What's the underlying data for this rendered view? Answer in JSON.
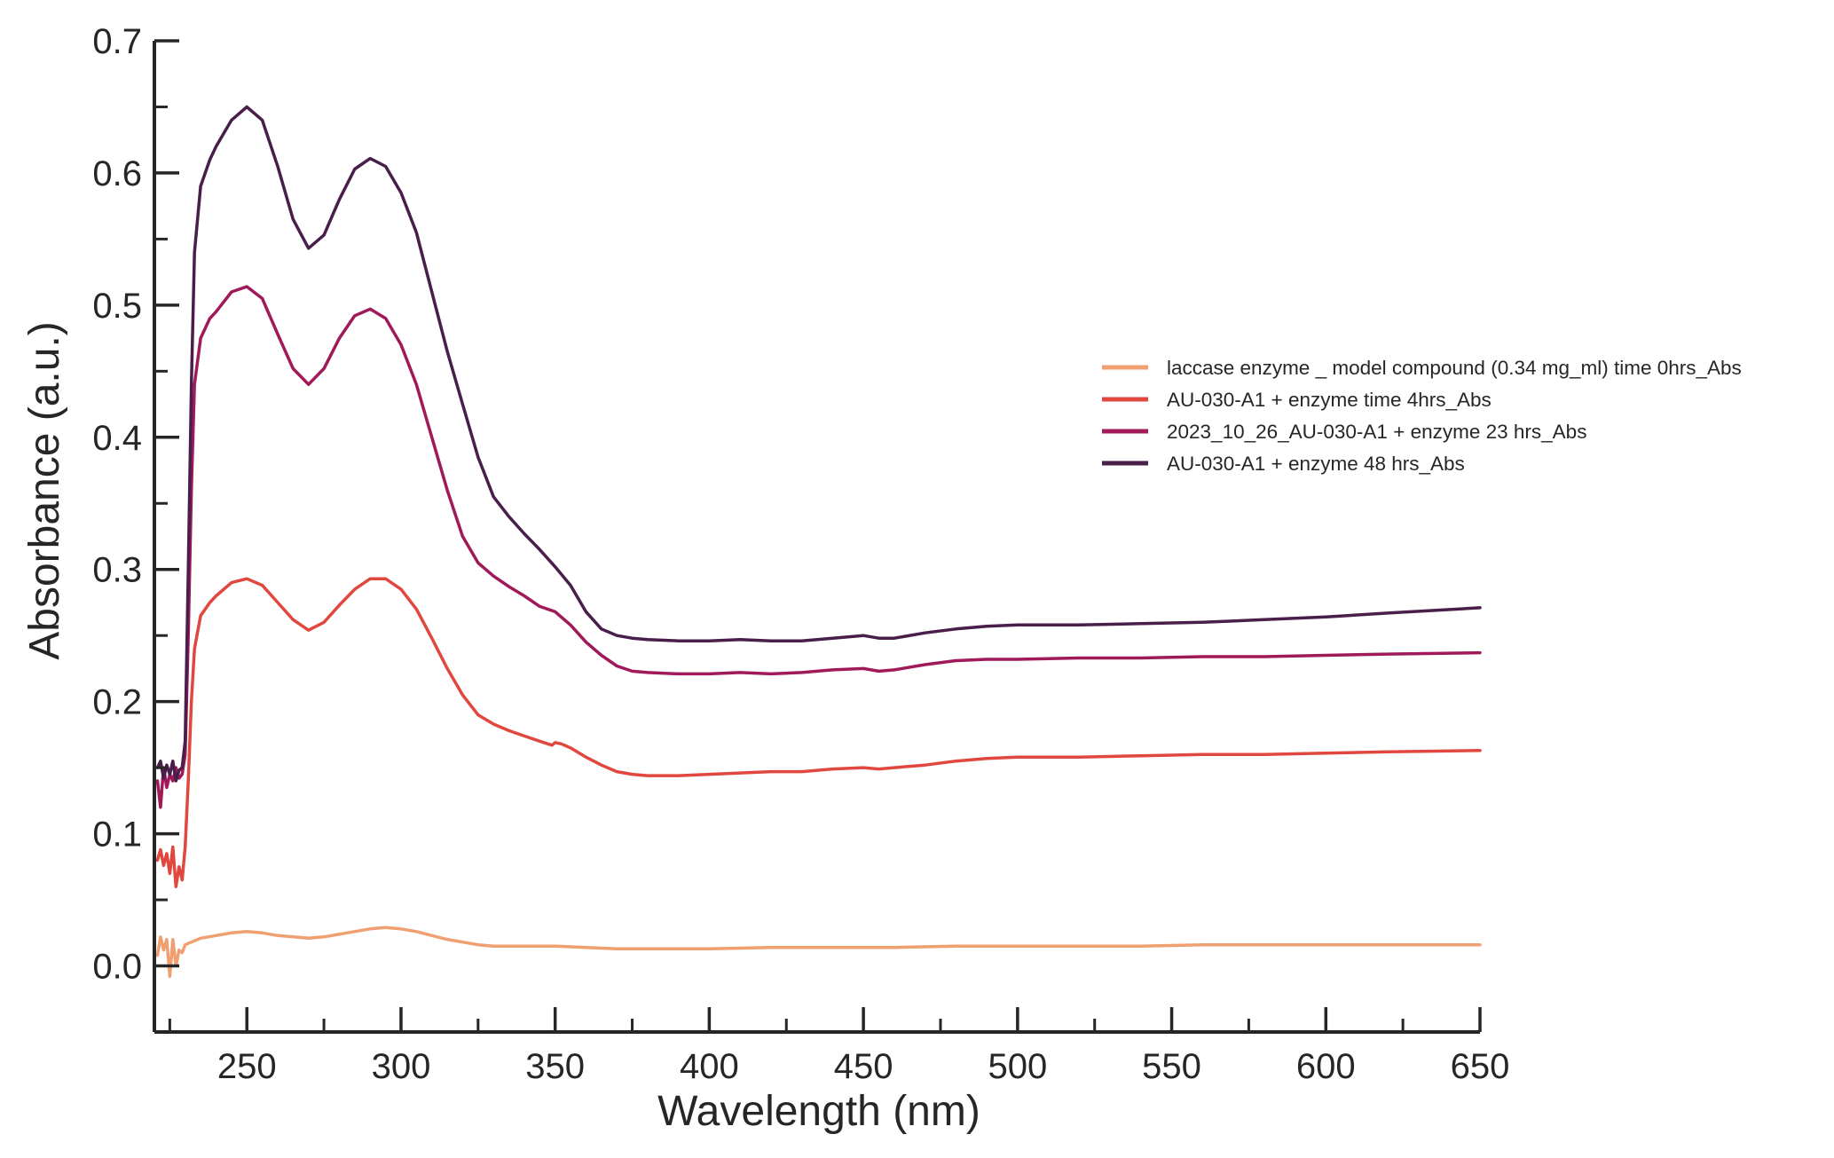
{
  "chart_data": {
    "type": "line",
    "title": "",
    "xlabel": "Wavelength (nm)",
    "ylabel": "Absorbance (a.u.)",
    "xlim": [
      220,
      650
    ],
    "ylim": [
      -0.05,
      0.7
    ],
    "xticks": [
      250,
      300,
      350,
      400,
      450,
      500,
      550,
      600,
      650
    ],
    "xtick_labels": [
      "250",
      "300",
      "350",
      "400",
      "450",
      "500",
      "550",
      "600",
      "650"
    ],
    "yticks": [
      0.0,
      0.1,
      0.2,
      0.3,
      0.4,
      0.5,
      0.6,
      0.7
    ],
    "ytick_labels": [
      "0.0",
      "0.1",
      "0.2",
      "0.3",
      "0.4",
      "0.5",
      "0.6",
      "0.7"
    ],
    "grid": false,
    "legend_position": "right",
    "series": [
      {
        "name": "laccase enzyme _ model compound (0.34 mg_ml) time 0hrs_Abs",
        "color": "#f0a070",
        "points": [
          [
            221,
            0.008
          ],
          [
            222,
            0.022
          ],
          [
            223,
            0.012
          ],
          [
            224,
            0.02
          ],
          [
            225,
            -0.008
          ],
          [
            226,
            0.02
          ],
          [
            227,
            0.0
          ],
          [
            228,
            0.012
          ],
          [
            229,
            0.01
          ],
          [
            230,
            0.016
          ],
          [
            232,
            0.018
          ],
          [
            235,
            0.021
          ],
          [
            240,
            0.023
          ],
          [
            245,
            0.025
          ],
          [
            250,
            0.026
          ],
          [
            255,
            0.025
          ],
          [
            260,
            0.023
          ],
          [
            265,
            0.022
          ],
          [
            270,
            0.021
          ],
          [
            275,
            0.022
          ],
          [
            280,
            0.024
          ],
          [
            285,
            0.026
          ],
          [
            290,
            0.028
          ],
          [
            295,
            0.029
          ],
          [
            300,
            0.028
          ],
          [
            305,
            0.026
          ],
          [
            310,
            0.023
          ],
          [
            315,
            0.02
          ],
          [
            320,
            0.018
          ],
          [
            325,
            0.016
          ],
          [
            330,
            0.015
          ],
          [
            340,
            0.015
          ],
          [
            350,
            0.015
          ],
          [
            360,
            0.014
          ],
          [
            370,
            0.013
          ],
          [
            380,
            0.013
          ],
          [
            390,
            0.013
          ],
          [
            400,
            0.013
          ],
          [
            420,
            0.014
          ],
          [
            440,
            0.014
          ],
          [
            460,
            0.014
          ],
          [
            480,
            0.015
          ],
          [
            500,
            0.015
          ],
          [
            520,
            0.015
          ],
          [
            540,
            0.015
          ],
          [
            560,
            0.016
          ],
          [
            580,
            0.016
          ],
          [
            600,
            0.016
          ],
          [
            620,
            0.016
          ],
          [
            650,
            0.016
          ]
        ]
      },
      {
        "name": "AU-030-A1 + enzyme time 4hrs_Abs",
        "color": "#e0483f",
        "points": [
          [
            221,
            0.08
          ],
          [
            222,
            0.088
          ],
          [
            223,
            0.076
          ],
          [
            224,
            0.085
          ],
          [
            225,
            0.07
          ],
          [
            226,
            0.09
          ],
          [
            227,
            0.06
          ],
          [
            228,
            0.075
          ],
          [
            229,
            0.065
          ],
          [
            230,
            0.09
          ],
          [
            231,
            0.14
          ],
          [
            232,
            0.2
          ],
          [
            233,
            0.24
          ],
          [
            235,
            0.265
          ],
          [
            238,
            0.275
          ],
          [
            240,
            0.28
          ],
          [
            245,
            0.29
          ],
          [
            250,
            0.293
          ],
          [
            255,
            0.288
          ],
          [
            260,
            0.275
          ],
          [
            265,
            0.262
          ],
          [
            270,
            0.254
          ],
          [
            275,
            0.26
          ],
          [
            280,
            0.273
          ],
          [
            285,
            0.285
          ],
          [
            290,
            0.293
          ],
          [
            295,
            0.293
          ],
          [
            300,
            0.285
          ],
          [
            305,
            0.27
          ],
          [
            310,
            0.248
          ],
          [
            315,
            0.225
          ],
          [
            320,
            0.205
          ],
          [
            325,
            0.19
          ],
          [
            330,
            0.183
          ],
          [
            335,
            0.178
          ],
          [
            340,
            0.174
          ],
          [
            345,
            0.17
          ],
          [
            349,
            0.167
          ],
          [
            350,
            0.169
          ],
          [
            352,
            0.168
          ],
          [
            355,
            0.165
          ],
          [
            360,
            0.158
          ],
          [
            365,
            0.152
          ],
          [
            370,
            0.147
          ],
          [
            375,
            0.145
          ],
          [
            380,
            0.144
          ],
          [
            390,
            0.144
          ],
          [
            400,
            0.145
          ],
          [
            410,
            0.146
          ],
          [
            420,
            0.147
          ],
          [
            430,
            0.147
          ],
          [
            440,
            0.149
          ],
          [
            450,
            0.15
          ],
          [
            455,
            0.149
          ],
          [
            460,
            0.15
          ],
          [
            470,
            0.152
          ],
          [
            480,
            0.155
          ],
          [
            490,
            0.157
          ],
          [
            500,
            0.158
          ],
          [
            520,
            0.158
          ],
          [
            540,
            0.159
          ],
          [
            560,
            0.16
          ],
          [
            580,
            0.16
          ],
          [
            600,
            0.161
          ],
          [
            620,
            0.162
          ],
          [
            650,
            0.163
          ]
        ]
      },
      {
        "name": "2023_10_26_AU-030-A1 + enzyme 23 hrs_Abs",
        "color": "#a01a5a",
        "points": [
          [
            221,
            0.14
          ],
          [
            222,
            0.12
          ],
          [
            223,
            0.15
          ],
          [
            224,
            0.135
          ],
          [
            225,
            0.145
          ],
          [
            226,
            0.14
          ],
          [
            227,
            0.15
          ],
          [
            228,
            0.142
          ],
          [
            229,
            0.145
          ],
          [
            230,
            0.16
          ],
          [
            231,
            0.25
          ],
          [
            232,
            0.36
          ],
          [
            233,
            0.44
          ],
          [
            235,
            0.475
          ],
          [
            238,
            0.49
          ],
          [
            240,
            0.495
          ],
          [
            245,
            0.51
          ],
          [
            250,
            0.514
          ],
          [
            255,
            0.505
          ],
          [
            260,
            0.478
          ],
          [
            265,
            0.452
          ],
          [
            270,
            0.44
          ],
          [
            275,
            0.452
          ],
          [
            280,
            0.475
          ],
          [
            285,
            0.492
          ],
          [
            290,
            0.497
          ],
          [
            295,
            0.49
          ],
          [
            300,
            0.47
          ],
          [
            305,
            0.44
          ],
          [
            310,
            0.4
          ],
          [
            315,
            0.36
          ],
          [
            320,
            0.325
          ],
          [
            325,
            0.305
          ],
          [
            330,
            0.295
          ],
          [
            335,
            0.287
          ],
          [
            340,
            0.28
          ],
          [
            345,
            0.272
          ],
          [
            350,
            0.268
          ],
          [
            355,
            0.258
          ],
          [
            360,
            0.245
          ],
          [
            365,
            0.235
          ],
          [
            370,
            0.227
          ],
          [
            375,
            0.223
          ],
          [
            380,
            0.222
          ],
          [
            390,
            0.221
          ],
          [
            400,
            0.221
          ],
          [
            410,
            0.222
          ],
          [
            420,
            0.221
          ],
          [
            430,
            0.222
          ],
          [
            440,
            0.224
          ],
          [
            450,
            0.225
          ],
          [
            455,
            0.223
          ],
          [
            460,
            0.224
          ],
          [
            470,
            0.228
          ],
          [
            480,
            0.231
          ],
          [
            490,
            0.232
          ],
          [
            500,
            0.232
          ],
          [
            520,
            0.233
          ],
          [
            540,
            0.233
          ],
          [
            560,
            0.234
          ],
          [
            580,
            0.234
          ],
          [
            600,
            0.235
          ],
          [
            620,
            0.236
          ],
          [
            650,
            0.237
          ]
        ]
      },
      {
        "name": "AU-030-A1 + enzyme 48 hrs_Abs",
        "color": "#4a1e4a",
        "points": [
          [
            221,
            0.15
          ],
          [
            222,
            0.155
          ],
          [
            223,
            0.142
          ],
          [
            224,
            0.152
          ],
          [
            225,
            0.145
          ],
          [
            226,
            0.155
          ],
          [
            227,
            0.14
          ],
          [
            228,
            0.148
          ],
          [
            229,
            0.15
          ],
          [
            230,
            0.17
          ],
          [
            231,
            0.3
          ],
          [
            232,
            0.44
          ],
          [
            233,
            0.54
          ],
          [
            235,
            0.59
          ],
          [
            238,
            0.61
          ],
          [
            240,
            0.62
          ],
          [
            245,
            0.64
          ],
          [
            250,
            0.65
          ],
          [
            255,
            0.64
          ],
          [
            260,
            0.605
          ],
          [
            265,
            0.565
          ],
          [
            270,
            0.543
          ],
          [
            275,
            0.553
          ],
          [
            280,
            0.58
          ],
          [
            285,
            0.603
          ],
          [
            290,
            0.611
          ],
          [
            295,
            0.605
          ],
          [
            300,
            0.585
          ],
          [
            305,
            0.555
          ],
          [
            310,
            0.51
          ],
          [
            315,
            0.465
          ],
          [
            320,
            0.425
          ],
          [
            325,
            0.385
          ],
          [
            330,
            0.355
          ],
          [
            335,
            0.34
          ],
          [
            340,
            0.327
          ],
          [
            345,
            0.315
          ],
          [
            350,
            0.302
          ],
          [
            355,
            0.288
          ],
          [
            360,
            0.268
          ],
          [
            365,
            0.255
          ],
          [
            370,
            0.25
          ],
          [
            375,
            0.248
          ],
          [
            380,
            0.247
          ],
          [
            390,
            0.246
          ],
          [
            400,
            0.246
          ],
          [
            410,
            0.247
          ],
          [
            420,
            0.246
          ],
          [
            430,
            0.246
          ],
          [
            440,
            0.248
          ],
          [
            450,
            0.25
          ],
          [
            455,
            0.248
          ],
          [
            460,
            0.248
          ],
          [
            470,
            0.252
          ],
          [
            480,
            0.255
          ],
          [
            490,
            0.257
          ],
          [
            500,
            0.258
          ],
          [
            520,
            0.258
          ],
          [
            540,
            0.259
          ],
          [
            560,
            0.26
          ],
          [
            580,
            0.262
          ],
          [
            600,
            0.264
          ],
          [
            620,
            0.267
          ],
          [
            650,
            0.271
          ]
        ]
      }
    ]
  }
}
